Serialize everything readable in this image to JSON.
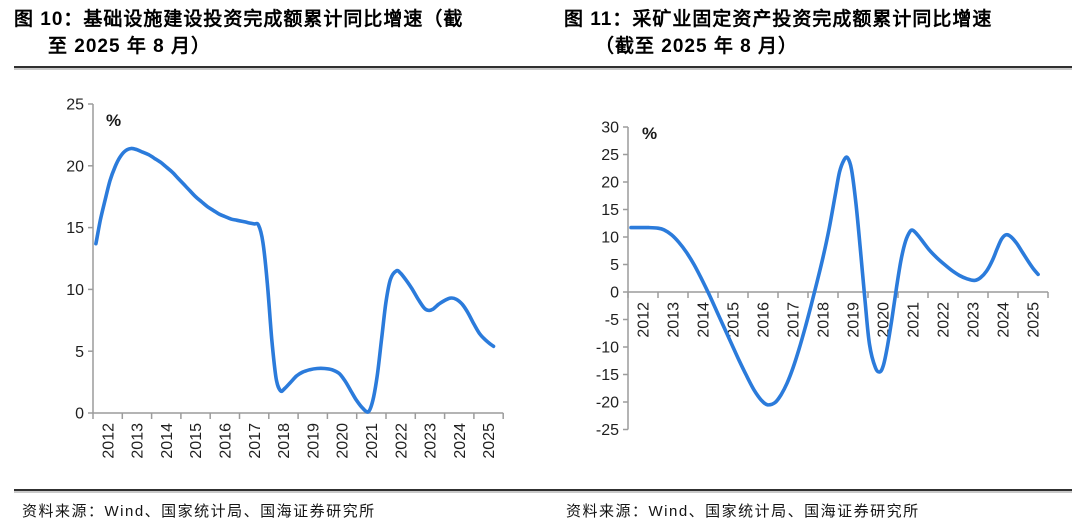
{
  "page": {
    "background": "#ffffff"
  },
  "figures": [
    {
      "caption_line1": "图 10：基础设施建设投资完成额累计同比增速（截",
      "caption_line2": "至 2025 年 8 月）",
      "source": "资料来源：Wind、国家统计局、国海证券研究所"
    },
    {
      "caption_line1": "图 11：采矿业固定资产投资完成额累计同比增速",
      "caption_line2": "（截至 2025 年 8 月）",
      "source": "资料来源：Wind、国家统计局、国海证券研究所"
    }
  ],
  "chart_data": [
    {
      "type": "line",
      "title": "基础设施建设投资完成额累计同比增速（截至2025年8月）",
      "xlabel": "",
      "ylabel": "%",
      "ylim": [
        0,
        25
      ],
      "yticks": [
        0,
        5,
        10,
        15,
        20,
        25
      ],
      "xlim": [
        2012,
        2026
      ],
      "xtick_labels": [
        "2012",
        "2013",
        "2014",
        "2015",
        "2016",
        "2017",
        "2018",
        "2019",
        "2020",
        "2021",
        "2022",
        "2023",
        "2024",
        "2025"
      ],
      "x_axis_at": 0,
      "grid": false,
      "legend": null,
      "line_color": "#2B7BDB",
      "axis_color": "#9C9C9C",
      "tick_text_color": "#1f1f1f",
      "series": [
        {
          "name": "基础设施建设投资完成额累计同比增速(%)",
          "points": [
            [
              2012.1,
              13.7
            ],
            [
              2012.25,
              15.6
            ],
            [
              2012.42,
              17.3
            ],
            [
              2012.58,
              18.8
            ],
            [
              2012.75,
              19.9
            ],
            [
              2012.92,
              20.7
            ],
            [
              2013.1,
              21.2
            ],
            [
              2013.3,
              21.4
            ],
            [
              2013.5,
              21.3
            ],
            [
              2013.7,
              21.1
            ],
            [
              2013.9,
              20.9
            ],
            [
              2014.1,
              20.6
            ],
            [
              2014.3,
              20.3
            ],
            [
              2014.5,
              19.9
            ],
            [
              2014.7,
              19.5
            ],
            [
              2014.9,
              19.0
            ],
            [
              2015.1,
              18.5
            ],
            [
              2015.3,
              18.0
            ],
            [
              2015.5,
              17.5
            ],
            [
              2015.7,
              17.1
            ],
            [
              2015.9,
              16.7
            ],
            [
              2016.1,
              16.4
            ],
            [
              2016.3,
              16.1
            ],
            [
              2016.5,
              15.9
            ],
            [
              2016.7,
              15.7
            ],
            [
              2016.9,
              15.6
            ],
            [
              2017.1,
              15.5
            ],
            [
              2017.3,
              15.4
            ],
            [
              2017.5,
              15.3
            ],
            [
              2017.65,
              15.2
            ],
            [
              2017.8,
              13.8
            ],
            [
              2017.95,
              10.5
            ],
            [
              2018.1,
              6.0
            ],
            [
              2018.25,
              2.8
            ],
            [
              2018.4,
              1.8
            ],
            [
              2018.55,
              2.0
            ],
            [
              2018.75,
              2.5
            ],
            [
              2018.95,
              3.0
            ],
            [
              2019.15,
              3.3
            ],
            [
              2019.4,
              3.5
            ],
            [
              2019.65,
              3.6
            ],
            [
              2019.9,
              3.6
            ],
            [
              2020.15,
              3.5
            ],
            [
              2020.4,
              3.2
            ],
            [
              2020.6,
              2.6
            ],
            [
              2020.8,
              1.8
            ],
            [
              2021.0,
              1.0
            ],
            [
              2021.2,
              0.4
            ],
            [
              2021.4,
              0.1
            ],
            [
              2021.55,
              1.0
            ],
            [
              2021.7,
              3.0
            ],
            [
              2021.85,
              6.0
            ],
            [
              2022.0,
              9.0
            ],
            [
              2022.15,
              10.8
            ],
            [
              2022.35,
              11.5
            ],
            [
              2022.5,
              11.3
            ],
            [
              2022.7,
              10.7
            ],
            [
              2022.9,
              10.0
            ],
            [
              2023.1,
              9.2
            ],
            [
              2023.3,
              8.5
            ],
            [
              2023.45,
              8.3
            ],
            [
              2023.6,
              8.4
            ],
            [
              2023.8,
              8.8
            ],
            [
              2024.0,
              9.1
            ],
            [
              2024.2,
              9.3
            ],
            [
              2024.4,
              9.2
            ],
            [
              2024.6,
              8.8
            ],
            [
              2024.8,
              8.1
            ],
            [
              2025.0,
              7.2
            ],
            [
              2025.2,
              6.4
            ],
            [
              2025.4,
              5.9
            ],
            [
              2025.55,
              5.6
            ],
            [
              2025.67,
              5.4
            ]
          ]
        }
      ]
    },
    {
      "type": "line",
      "title": "采矿业固定资产投资完成额累计同比增速（截至2025年8月）",
      "xlabel": "",
      "ylabel": "%",
      "ylim": [
        -25,
        30
      ],
      "yticks": [
        -25,
        -20,
        -15,
        -10,
        -5,
        0,
        5,
        10,
        15,
        20,
        25,
        30
      ],
      "xlim": [
        2012,
        2026
      ],
      "xtick_labels": [
        "2012",
        "2013",
        "2014",
        "2015",
        "2016",
        "2017",
        "2018",
        "2019",
        "2020",
        "2021",
        "2022",
        "2023",
        "2024",
        "2025"
      ],
      "x_axis_at": 0,
      "grid": false,
      "legend": null,
      "line_color": "#2B7BDB",
      "axis_color": "#9C9C9C",
      "tick_text_color": "#1f1f1f",
      "series": [
        {
          "name": "采矿业固定资产投资完成额累计同比增速(%)",
          "points": [
            [
              2012.1,
              11.7
            ],
            [
              2012.4,
              11.7
            ],
            [
              2012.7,
              11.7
            ],
            [
              2013.0,
              11.6
            ],
            [
              2013.2,
              11.3
            ],
            [
              2013.45,
              10.4
            ],
            [
              2013.7,
              9.0
            ],
            [
              2013.95,
              7.2
            ],
            [
              2014.2,
              5.0
            ],
            [
              2014.45,
              2.4
            ],
            [
              2014.7,
              -0.4
            ],
            [
              2014.95,
              -3.4
            ],
            [
              2015.2,
              -6.4
            ],
            [
              2015.45,
              -9.4
            ],
            [
              2015.7,
              -12.4
            ],
            [
              2015.95,
              -15.2
            ],
            [
              2016.2,
              -17.8
            ],
            [
              2016.45,
              -19.7
            ],
            [
              2016.65,
              -20.5
            ],
            [
              2016.9,
              -20.1
            ],
            [
              2017.1,
              -18.7
            ],
            [
              2017.3,
              -16.6
            ],
            [
              2017.5,
              -13.8
            ],
            [
              2017.7,
              -10.4
            ],
            [
              2017.9,
              -6.6
            ],
            [
              2018.1,
              -2.5
            ],
            [
              2018.3,
              1.8
            ],
            [
              2018.5,
              6.3
            ],
            [
              2018.7,
              11.4
            ],
            [
              2018.9,
              17.4
            ],
            [
              2019.05,
              21.8
            ],
            [
              2019.2,
              24.0
            ],
            [
              2019.32,
              24.4
            ],
            [
              2019.45,
              22.3
            ],
            [
              2019.6,
              16.0
            ],
            [
              2019.75,
              7.5
            ],
            [
              2019.9,
              -1.5
            ],
            [
              2020.05,
              -9.5
            ],
            [
              2020.25,
              -13.8
            ],
            [
              2020.4,
              -14.5
            ],
            [
              2020.52,
              -13.2
            ],
            [
              2020.65,
              -9.8
            ],
            [
              2020.8,
              -4.8
            ],
            [
              2020.95,
              0.8
            ],
            [
              2021.1,
              5.8
            ],
            [
              2021.25,
              9.2
            ],
            [
              2021.4,
              11.0
            ],
            [
              2021.5,
              11.2
            ],
            [
              2021.65,
              10.4
            ],
            [
              2021.85,
              9.0
            ],
            [
              2022.05,
              7.6
            ],
            [
              2022.3,
              6.2
            ],
            [
              2022.55,
              5.0
            ],
            [
              2022.8,
              3.9
            ],
            [
              2023.05,
              3.0
            ],
            [
              2023.3,
              2.4
            ],
            [
              2023.55,
              2.1
            ],
            [
              2023.75,
              2.6
            ],
            [
              2023.95,
              3.8
            ],
            [
              2024.15,
              5.8
            ],
            [
              2024.3,
              7.8
            ],
            [
              2024.45,
              9.6
            ],
            [
              2024.6,
              10.4
            ],
            [
              2024.75,
              10.1
            ],
            [
              2024.95,
              8.9
            ],
            [
              2025.15,
              7.2
            ],
            [
              2025.35,
              5.5
            ],
            [
              2025.5,
              4.3
            ],
            [
              2025.67,
              3.2
            ]
          ]
        }
      ]
    }
  ]
}
